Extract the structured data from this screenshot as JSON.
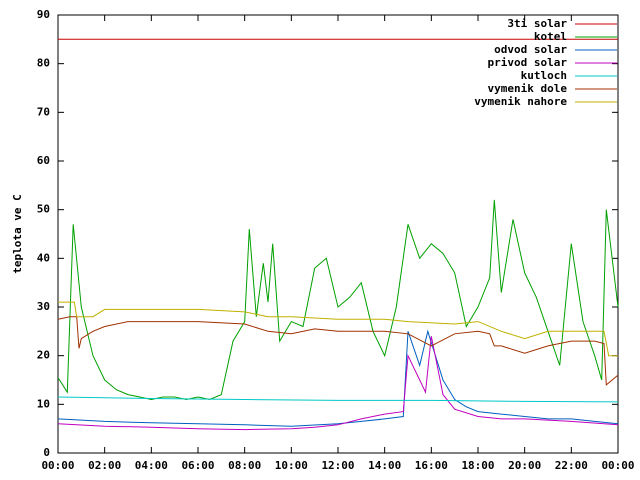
{
  "chart_data": {
    "type": "line",
    "ylabel": "teplota ve C",
    "xlim": [
      0,
      24
    ],
    "xticks": [
      {
        "value": 0,
        "label": "00:00"
      },
      {
        "value": 2,
        "label": "02:00"
      },
      {
        "value": 4,
        "label": "04:00"
      },
      {
        "value": 6,
        "label": "06:00"
      },
      {
        "value": 8,
        "label": "08:00"
      },
      {
        "value": 10,
        "label": "10:00"
      },
      {
        "value": 12,
        "label": "12:00"
      },
      {
        "value": 14,
        "label": "14:00"
      },
      {
        "value": 16,
        "label": "16:00"
      },
      {
        "value": 18,
        "label": "18:00"
      },
      {
        "value": 20,
        "label": "20:00"
      },
      {
        "value": 22,
        "label": "22:00"
      },
      {
        "value": 24,
        "label": "00:00"
      }
    ],
    "ylim": [
      0,
      90
    ],
    "yticks": [
      0,
      10,
      20,
      30,
      40,
      50,
      60,
      70,
      80,
      90
    ],
    "grid": false,
    "legend": "top-right",
    "series": [
      {
        "name": "3ti solar",
        "color": "#cc0000",
        "x": [
          0,
          24
        ],
        "values": [
          85,
          85
        ]
      },
      {
        "name": "kotel",
        "color": "#00a000",
        "x": [
          0,
          0.4,
          0.65,
          1,
          1.5,
          2,
          2.5,
          3,
          3.5,
          4,
          4.5,
          5,
          5.5,
          6,
          6.5,
          7,
          7.5,
          8,
          8.2,
          8.5,
          8.8,
          9,
          9.2,
          9.5,
          10,
          10.5,
          11,
          11.5,
          12,
          12.5,
          13,
          13.5,
          14,
          14.5,
          15,
          15.5,
          16,
          16.5,
          17,
          17.5,
          18,
          18.5,
          18.7,
          19,
          19.5,
          20,
          20.5,
          21,
          21.5,
          22,
          22.5,
          23,
          23.3,
          23.5,
          24
        ],
        "values": [
          15.5,
          12.5,
          47,
          30,
          20,
          15,
          13,
          12,
          11.5,
          11,
          11.5,
          11.5,
          11,
          11.5,
          11,
          12,
          23,
          27,
          46,
          28,
          39,
          31,
          43,
          23,
          27,
          26,
          38,
          40,
          30,
          32,
          35,
          25,
          20,
          30,
          47,
          40,
          43,
          41,
          37,
          26,
          30,
          36,
          52,
          33,
          48,
          37,
          32,
          25,
          18,
          43,
          27,
          20,
          15,
          50,
          30
        ]
      },
      {
        "name": "odvod solar",
        "color": "#0060c0",
        "x": [
          0,
          2,
          4,
          6,
          8,
          10,
          12,
          13,
          14,
          14.8,
          15,
          15.5,
          15.85,
          16.5,
          17,
          17.5,
          18,
          19,
          20,
          21,
          22,
          23,
          24
        ],
        "values": [
          7,
          6.5,
          6.2,
          6,
          5.8,
          5.5,
          6,
          6.5,
          7,
          7.5,
          25,
          18,
          25,
          15,
          11,
          9.5,
          8.5,
          8,
          7.5,
          7,
          7,
          6.5,
          6
        ]
      },
      {
        "name": "privod solar",
        "color": "#c000c0",
        "x": [
          0,
          2,
          4,
          6,
          8,
          10,
          11,
          12,
          13,
          14,
          14.8,
          15,
          15.5,
          15.75,
          16,
          16.5,
          17,
          18,
          19,
          20,
          22,
          24
        ],
        "values": [
          6,
          5.5,
          5.3,
          5,
          4.8,
          5,
          5.3,
          5.8,
          7,
          8,
          8.5,
          20,
          15,
          12.5,
          24,
          12,
          9,
          7.5,
          7,
          7,
          6.5,
          5.8
        ]
      },
      {
        "name": "kutloch",
        "color": "#00c8c8",
        "x": [
          0,
          4,
          8,
          12,
          16,
          20,
          24
        ],
        "values": [
          11.5,
          11.2,
          11,
          10.8,
          10.8,
          10.6,
          10.5
        ]
      },
      {
        "name": "vymenik dole",
        "color": "#a03000",
        "x": [
          0,
          0.5,
          0.8,
          0.9,
          1,
          1.5,
          2,
          3,
          6,
          8,
          9,
          10,
          11,
          12,
          14,
          15,
          16,
          17,
          18,
          18.5,
          18.7,
          19,
          20,
          21,
          22,
          23,
          23.4,
          23.5,
          24
        ],
        "values": [
          27.5,
          28,
          28,
          21.5,
          23.5,
          25,
          26,
          27,
          27,
          26.5,
          25,
          24.5,
          25.5,
          25,
          25,
          24.5,
          22,
          24.5,
          25,
          24.5,
          22,
          22,
          20.5,
          22,
          23,
          23,
          22.5,
          14,
          16
        ]
      },
      {
        "name": "vymenik nahore",
        "color": "#c0b000",
        "x": [
          0,
          0.7,
          0.8,
          1.5,
          2,
          6,
          8,
          9,
          10,
          12,
          14,
          15,
          17,
          18,
          19,
          20,
          21,
          23,
          23.4,
          23.6,
          24
        ],
        "values": [
          31,
          31,
          28,
          28,
          29.5,
          29.5,
          29,
          28,
          28,
          27.5,
          27.5,
          27,
          26.5,
          27,
          25,
          23.5,
          25,
          25,
          25,
          20,
          20
        ]
      }
    ]
  }
}
